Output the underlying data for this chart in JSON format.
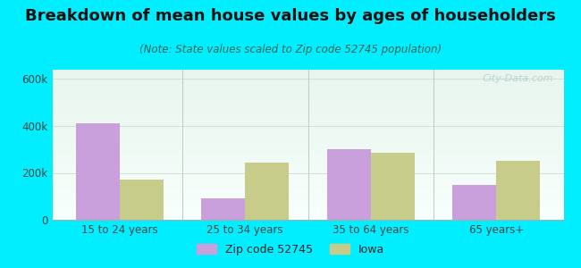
{
  "title": "Breakdown of mean house values by ages of householders",
  "subtitle": "(Note: State values scaled to Zip code 52745 population)",
  "categories": [
    "15 to 24 years",
    "25 to 34 years",
    "35 to 64 years",
    "65 years+"
  ],
  "zip_values": [
    410000,
    90000,
    300000,
    150000
  ],
  "iowa_values": [
    170000,
    245000,
    285000,
    250000
  ],
  "zip_color": "#c9a0dc",
  "iowa_color": "#c8cc8a",
  "background_outer": "#00eeff",
  "ylim": [
    0,
    640000
  ],
  "yticks": [
    0,
    200000,
    400000,
    600000
  ],
  "ytick_labels": [
    "0",
    "200k",
    "400k",
    "600k"
  ],
  "legend_labels": [
    "Zip code 52745",
    "Iowa"
  ],
  "bar_width": 0.35,
  "title_fontsize": 13,
  "subtitle_fontsize": 8.5,
  "tick_fontsize": 8.5,
  "legend_fontsize": 9,
  "watermark": "City-Data.com"
}
